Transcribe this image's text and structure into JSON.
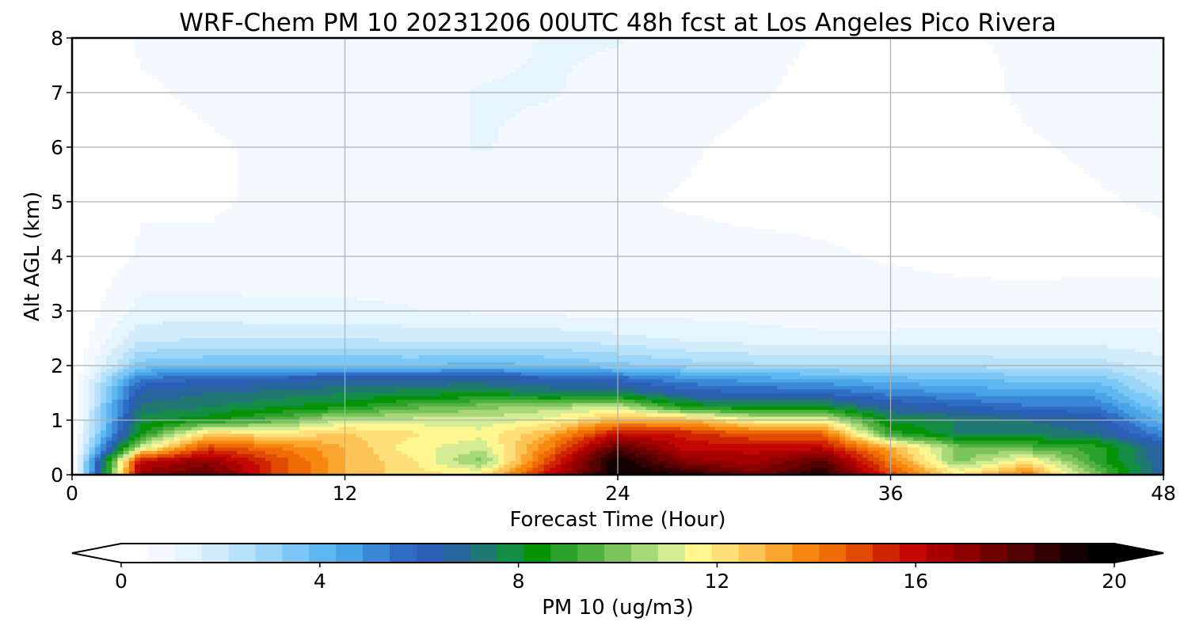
{
  "chart_data": {
    "type": "heatmap",
    "title": "WRF-Chem PM 10  20231206 00UTC 48h fcst at Los Angeles Pico Rivera",
    "xlabel": "Forecast Time (Hour)",
    "ylabel": "Alt AGL (km)",
    "xlim": [
      0,
      48
    ],
    "ylim": [
      0,
      8
    ],
    "xticks": [
      0,
      12,
      24,
      36,
      48
    ],
    "yticks": [
      0,
      1,
      2,
      3,
      4,
      5,
      6,
      7,
      8
    ],
    "grid": true,
    "colorbar": {
      "label": "PM 10  (ug/m3)",
      "range": [
        0,
        20
      ],
      "ticks": [
        0,
        4,
        8,
        12,
        16,
        20
      ],
      "extend": "both",
      "placement": "bottom",
      "colors": [
        "#ffffff",
        "#f3f9fe",
        "#e6f4fd",
        "#d2ecfb",
        "#b8e2fa",
        "#9bd5f8",
        "#7cc7f5",
        "#5fb7f0",
        "#4aa3e6",
        "#3b88d6",
        "#2f6dc4",
        "#2a5fb5",
        "#27659c",
        "#217872",
        "#138c45",
        "#049304",
        "#2aa12a",
        "#4fb23f",
        "#7ac45a",
        "#a8d877",
        "#d4ec93",
        "#fff68f",
        "#fde07a",
        "#fcc455",
        "#faa52e",
        "#f7870f",
        "#ef6b05",
        "#e04a02",
        "#cf2402",
        "#c40702",
        "#a80000",
        "#8c0000",
        "#6e0000",
        "#520202",
        "#320000",
        "#140000",
        "#000000"
      ]
    },
    "hours": [
      0,
      3,
      6,
      9,
      12,
      15,
      18,
      21,
      24,
      27,
      30,
      33,
      36,
      39,
      42,
      45,
      48
    ],
    "altitudes_km": [
      0,
      0.25,
      0.5,
      0.75,
      1,
      1.25,
      1.5,
      1.75,
      2,
      2.5,
      3,
      4,
      5,
      6,
      7,
      8
    ],
    "pm10_ugm3": [
      [
        0,
        17,
        18,
        15,
        13,
        12,
        12,
        16,
        19.5,
        19,
        17.5,
        19,
        15,
        12,
        14,
        10,
        6.5
      ],
      [
        0,
        16,
        17,
        15,
        13,
        12,
        10,
        15,
        19.5,
        17,
        16.5,
        18,
        14,
        10,
        12,
        9,
        6.5
      ],
      [
        0,
        11,
        15,
        14,
        13,
        11.5,
        11,
        14,
        18,
        16,
        16,
        16,
        13,
        10,
        9.5,
        9,
        6.5
      ],
      [
        0,
        8.5,
        12.5,
        12,
        12.5,
        12,
        11.5,
        13,
        16,
        15.5,
        14.5,
        14.5,
        9,
        7.5,
        7.5,
        7,
        5
      ],
      [
        0,
        7.8,
        8.5,
        9.5,
        11,
        11,
        11,
        11.5,
        13,
        13,
        11.5,
        11.5,
        8,
        7.5,
        7,
        6.5,
        4
      ],
      [
        0,
        7.2,
        7.5,
        8,
        8.5,
        9.5,
        10,
        10.5,
        11,
        8.5,
        8,
        8,
        6.5,
        6,
        5.5,
        5.5,
        3.2
      ],
      [
        0,
        6.6,
        7,
        7.2,
        7.5,
        7.8,
        8,
        7.5,
        7.5,
        6.2,
        6,
        5.8,
        5.2,
        4.8,
        4.5,
        4.5,
        2.6
      ],
      [
        0,
        5.5,
        6,
        6.2,
        6.5,
        6.5,
        6.5,
        6.2,
        5.8,
        5,
        4.6,
        4.4,
        4,
        3.8,
        3.6,
        3.6,
        2.2
      ],
      [
        0,
        3.5,
        3.8,
        3.8,
        3.8,
        3.8,
        4,
        3.8,
        3.4,
        3,
        2.8,
        2.6,
        2.6,
        2.6,
        2.5,
        2.5,
        1.8
      ],
      [
        0,
        2,
        2.1,
        2.1,
        2.1,
        2,
        2,
        2,
        1.8,
        1.5,
        1.3,
        1.2,
        1.2,
        1.3,
        1.3,
        1.3,
        1.2
      ],
      [
        0,
        1.3,
        1.3,
        1.2,
        1.2,
        1.1,
        1,
        0.9,
        0.8,
        0.9,
        0.9,
        0.8,
        0.8,
        0.8,
        0.7,
        0.8,
        0.8
      ],
      [
        0,
        0.6,
        0.6,
        0.7,
        0.7,
        0.8,
        0.9,
        0.7,
        0.6,
        0.7,
        0.7,
        0.6,
        0.5,
        0.4,
        0.4,
        0.4,
        0.4
      ],
      [
        0,
        0.5,
        0.5,
        0.6,
        0.7,
        0.8,
        0.9,
        0.8,
        0.6,
        0.5,
        0.4,
        0.4,
        0.4,
        0.4,
        0.4,
        0.5,
        0.6
      ],
      [
        0,
        0.4,
        0.5,
        0.6,
        0.8,
        1,
        1.1,
        1,
        0.8,
        0.6,
        0.4,
        0.3,
        0.3,
        0.4,
        0.5,
        0.6,
        0.7
      ],
      [
        0,
        0.5,
        0.6,
        0.7,
        0.8,
        1,
        1.1,
        1.1,
        1,
        0.8,
        0.6,
        0.4,
        0.3,
        0.4,
        0.6,
        0.7,
        0.8
      ],
      [
        0,
        0.6,
        0.6,
        0.7,
        0.8,
        0.9,
        1,
        1.1,
        1.1,
        0.9,
        0.7,
        0.5,
        0.4,
        0.5,
        0.6,
        0.7,
        0.8
      ]
    ]
  }
}
